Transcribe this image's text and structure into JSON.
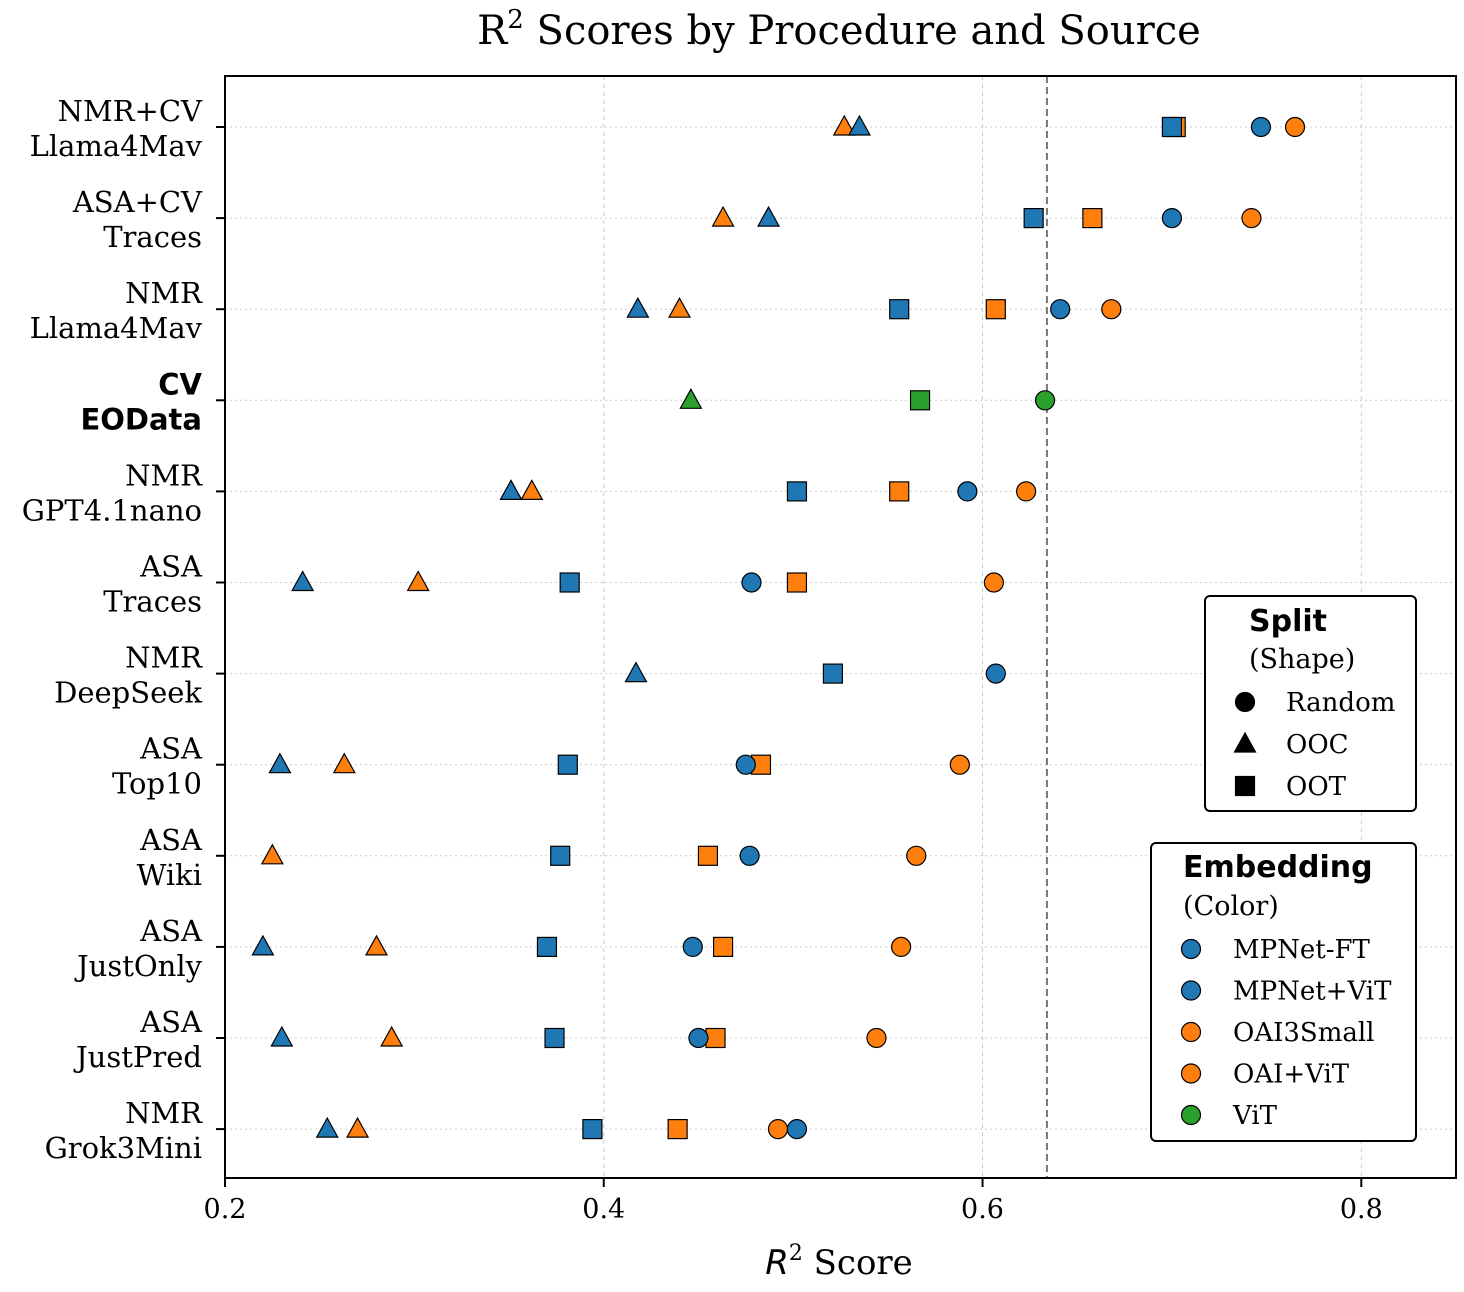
{
  "chart_data": {
    "type": "scatter",
    "title_main": "R",
    "title_sup": "2",
    "title_rest": " Scores by Procedure and Source",
    "xlabel_var": "R",
    "xlabel_sup": "2",
    "xlabel_rest": " Score",
    "xlim": [
      0.2,
      0.85
    ],
    "xticks": [
      0.2,
      0.4,
      0.6,
      0.8
    ],
    "xtick_labels": [
      "0.2",
      "0.4",
      "0.6",
      "0.8"
    ],
    "reference_line_x": 0.634,
    "grid": true,
    "colors": {
      "mpnet": "#1f77b4",
      "oai": "#ff7f0e",
      "vit": "#2ca02c"
    },
    "rows": [
      {
        "label1": "NMR+CV",
        "label2": "Llama4Mav",
        "bold": false,
        "points": [
          {
            "x": 0.527,
            "shape": "OOC",
            "color": "oai"
          },
          {
            "x": 0.535,
            "shape": "OOC",
            "color": "mpnet"
          },
          {
            "x": 0.702,
            "shape": "OOT",
            "color": "oai"
          },
          {
            "x": 0.7,
            "shape": "OOT",
            "color": "mpnet"
          },
          {
            "x": 0.747,
            "shape": "Random",
            "color": "mpnet"
          },
          {
            "x": 0.765,
            "shape": "Random",
            "color": "oai"
          }
        ]
      },
      {
        "label1": "ASA+CV",
        "label2": "Traces",
        "bold": false,
        "points": [
          {
            "x": 0.463,
            "shape": "OOC",
            "color": "oai"
          },
          {
            "x": 0.487,
            "shape": "OOC",
            "color": "mpnet"
          },
          {
            "x": 0.627,
            "shape": "OOT",
            "color": "mpnet"
          },
          {
            "x": 0.658,
            "shape": "OOT",
            "color": "oai"
          },
          {
            "x": 0.7,
            "shape": "Random",
            "color": "mpnet"
          },
          {
            "x": 0.742,
            "shape": "Random",
            "color": "oai"
          }
        ]
      },
      {
        "label1": "NMR",
        "label2": "Llama4Mav",
        "bold": false,
        "points": [
          {
            "x": 0.418,
            "shape": "OOC",
            "color": "mpnet"
          },
          {
            "x": 0.44,
            "shape": "OOC",
            "color": "oai"
          },
          {
            "x": 0.556,
            "shape": "OOT",
            "color": "mpnet"
          },
          {
            "x": 0.607,
            "shape": "OOT",
            "color": "oai"
          },
          {
            "x": 0.641,
            "shape": "Random",
            "color": "mpnet"
          },
          {
            "x": 0.668,
            "shape": "Random",
            "color": "oai"
          }
        ]
      },
      {
        "label1": "CV",
        "label2": "EOData",
        "bold": true,
        "points": [
          {
            "x": 0.446,
            "shape": "OOC",
            "color": "vit"
          },
          {
            "x": 0.567,
            "shape": "OOT",
            "color": "vit"
          },
          {
            "x": 0.633,
            "shape": "Random",
            "color": "vit"
          }
        ]
      },
      {
        "label1": "NMR",
        "label2": "GPT4.1nano",
        "bold": false,
        "points": [
          {
            "x": 0.351,
            "shape": "OOC",
            "color": "mpnet"
          },
          {
            "x": 0.362,
            "shape": "OOC",
            "color": "oai"
          },
          {
            "x": 0.502,
            "shape": "OOT",
            "color": "mpnet"
          },
          {
            "x": 0.556,
            "shape": "OOT",
            "color": "oai"
          },
          {
            "x": 0.592,
            "shape": "Random",
            "color": "mpnet"
          },
          {
            "x": 0.623,
            "shape": "Random",
            "color": "oai"
          }
        ]
      },
      {
        "label1": "ASA",
        "label2": "Traces",
        "bold": false,
        "points": [
          {
            "x": 0.241,
            "shape": "OOC",
            "color": "mpnet"
          },
          {
            "x": 0.302,
            "shape": "OOC",
            "color": "oai"
          },
          {
            "x": 0.382,
            "shape": "OOT",
            "color": "mpnet"
          },
          {
            "x": 0.478,
            "shape": "Random",
            "color": "mpnet"
          },
          {
            "x": 0.502,
            "shape": "OOT",
            "color": "oai"
          },
          {
            "x": 0.606,
            "shape": "Random",
            "color": "oai"
          }
        ]
      },
      {
        "label1": "NMR",
        "label2": "DeepSeek",
        "bold": false,
        "points": [
          {
            "x": 0.417,
            "shape": "OOC",
            "color": "mpnet"
          },
          {
            "x": 0.521,
            "shape": "OOT",
            "color": "mpnet"
          },
          {
            "x": 0.607,
            "shape": "Random",
            "color": "mpnet"
          }
        ]
      },
      {
        "label1": "ASA",
        "label2": "Top10",
        "bold": false,
        "points": [
          {
            "x": 0.229,
            "shape": "OOC",
            "color": "mpnet"
          },
          {
            "x": 0.263,
            "shape": "OOC",
            "color": "oai"
          },
          {
            "x": 0.381,
            "shape": "OOT",
            "color": "mpnet"
          },
          {
            "x": 0.483,
            "shape": "OOT",
            "color": "oai"
          },
          {
            "x": 0.475,
            "shape": "Random",
            "color": "mpnet"
          },
          {
            "x": 0.588,
            "shape": "Random",
            "color": "oai"
          }
        ]
      },
      {
        "label1": "ASA",
        "label2": "Wiki",
        "bold": false,
        "points": [
          {
            "x": 0.225,
            "shape": "OOC",
            "color": "oai"
          },
          {
            "x": 0.377,
            "shape": "OOT",
            "color": "mpnet"
          },
          {
            "x": 0.455,
            "shape": "OOT",
            "color": "oai"
          },
          {
            "x": 0.477,
            "shape": "Random",
            "color": "mpnet"
          },
          {
            "x": 0.565,
            "shape": "Random",
            "color": "oai"
          }
        ]
      },
      {
        "label1": "ASA",
        "label2": "JustOnly",
        "bold": false,
        "points": [
          {
            "x": 0.22,
            "shape": "OOC",
            "color": "mpnet"
          },
          {
            "x": 0.28,
            "shape": "OOC",
            "color": "oai"
          },
          {
            "x": 0.37,
            "shape": "OOT",
            "color": "mpnet"
          },
          {
            "x": 0.447,
            "shape": "Random",
            "color": "mpnet"
          },
          {
            "x": 0.463,
            "shape": "OOT",
            "color": "oai"
          },
          {
            "x": 0.557,
            "shape": "Random",
            "color": "oai"
          }
        ]
      },
      {
        "label1": "ASA",
        "label2": "JustPred",
        "bold": false,
        "points": [
          {
            "x": 0.23,
            "shape": "OOC",
            "color": "mpnet"
          },
          {
            "x": 0.288,
            "shape": "OOC",
            "color": "oai"
          },
          {
            "x": 0.374,
            "shape": "OOT",
            "color": "mpnet"
          },
          {
            "x": 0.459,
            "shape": "OOT",
            "color": "oai"
          },
          {
            "x": 0.45,
            "shape": "Random",
            "color": "mpnet"
          },
          {
            "x": 0.544,
            "shape": "Random",
            "color": "oai"
          }
        ]
      },
      {
        "label1": "NMR",
        "label2": "Grok3Mini",
        "bold": false,
        "points": [
          {
            "x": 0.254,
            "shape": "OOC",
            "color": "mpnet"
          },
          {
            "x": 0.27,
            "shape": "OOC",
            "color": "oai"
          },
          {
            "x": 0.394,
            "shape": "OOT",
            "color": "mpnet"
          },
          {
            "x": 0.439,
            "shape": "OOT",
            "color": "oai"
          },
          {
            "x": 0.492,
            "shape": "Random",
            "color": "oai"
          },
          {
            "x": 0.502,
            "shape": "Random",
            "color": "mpnet"
          }
        ]
      }
    ],
    "legend_split": {
      "title": "Split",
      "subtitle": "(Shape)",
      "placement": "right",
      "entries": [
        {
          "label": "Random",
          "shape": "Random"
        },
        {
          "label": "OOC",
          "shape": "OOC"
        },
        {
          "label": "OOT",
          "shape": "OOT"
        }
      ]
    },
    "legend_embedding": {
      "title": "Embedding",
      "subtitle": "(Color)",
      "placement": "lower-right",
      "entries": [
        {
          "label": "MPNet-FT",
          "color": "mpnet"
        },
        {
          "label": "MPNet+ViT",
          "color": "mpnet"
        },
        {
          "label": "OAI3Small",
          "color": "oai"
        },
        {
          "label": "OAI+ViT",
          "color": "oai"
        },
        {
          "label": "ViT",
          "color": "vit"
        }
      ]
    }
  }
}
